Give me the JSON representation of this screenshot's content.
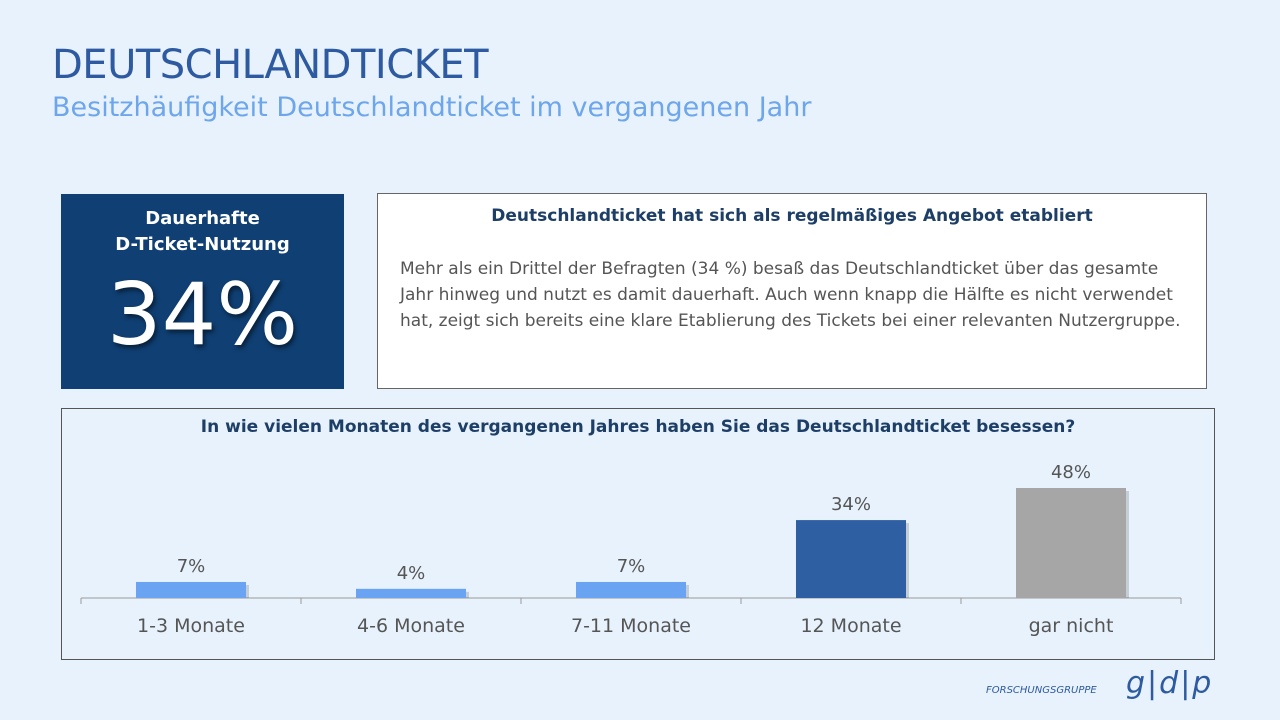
{
  "header": {
    "title": "DEUTSCHLANDTICKET",
    "subtitle": "Besitzhäufigkeit Deutschlandticket im vergangenen Jahr"
  },
  "kpi": {
    "label_line1": "Dauerhafte",
    "label_line2": "D-Ticket-Nutzung",
    "value": "34%"
  },
  "textbox": {
    "heading": "Deutschlandticket hat sich als regelmäßiges Angebot etabliert",
    "body": "Mehr als ein Drittel der Befragten (34 %) besaß das Deutschlandticket über das gesamte Jahr hinweg und nutzt es damit dauerhaft. Auch wenn knapp die Hälfte es nicht verwendet hat, zeigt sich bereits eine klare Etablierung des Tickets bei einer relevanten Nutzergruppe."
  },
  "logo": {
    "small": "FORSCHUNGSGRUPPE",
    "big": "g|d|p"
  },
  "chart_data": {
    "type": "bar",
    "title": "In wie vielen Monaten des vergangenen Jahres haben Sie das Deutschlandticket besessen?",
    "categories": [
      "1-3 Monate",
      "4-6 Monate",
      "7-11 Monate",
      "12 Monate",
      "gar nicht"
    ],
    "values": [
      7,
      4,
      7,
      34,
      48
    ],
    "labels": [
      "7%",
      "4%",
      "7%",
      "34%",
      "48%"
    ],
    "colors": [
      "#6aa3f2",
      "#6aa3f2",
      "#6aa3f2",
      "#2f5fa3",
      "#a6a6a6"
    ],
    "ylim": [
      0,
      48
    ],
    "xlabel": "",
    "ylabel": "",
    "grid": false
  }
}
